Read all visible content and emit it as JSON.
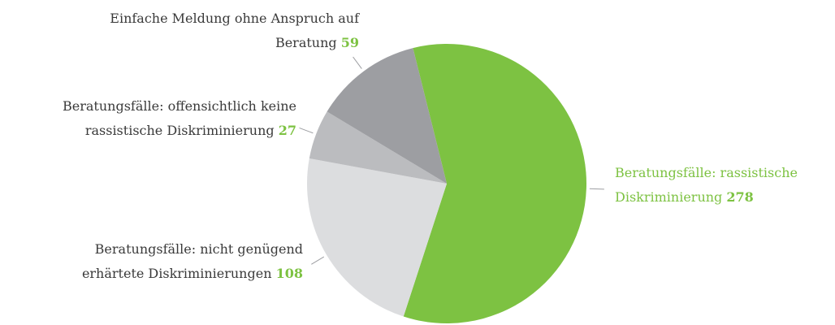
{
  "chart_data": {
    "type": "pie",
    "categories": [
      "Beratungsfälle: rassistische Diskriminierung",
      "Beratungsfälle: nicht genügend erhärtete Diskriminierungen",
      "Beratungsfälle: offensichtlich keine rassistische Diskriminierung",
      "Einfache Meldung ohne Anspruch auf Beratung"
    ],
    "values": [
      278,
      108,
      27,
      59
    ],
    "colors": [
      "#7dc242",
      "#dcdddf",
      "#bbbcbf",
      "#9d9ea2"
    ],
    "value_color": "#7dc242"
  }
}
